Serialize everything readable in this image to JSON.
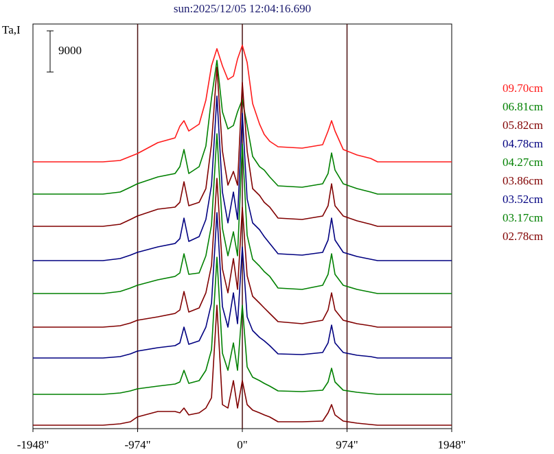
{
  "chart_data": {
    "type": "line",
    "title": "sun:2025/12/05 12:04:16.690",
    "y_label": "Ta,I",
    "scale_bar": 9000,
    "xlim": [
      -1948,
      1948
    ],
    "xticks": [
      {
        "value": -1948,
        "label": "-1948\""
      },
      {
        "value": -974,
        "label": "-974\""
      },
      {
        "value": 0,
        "label": "0\""
      },
      {
        "value": 974,
        "label": "974\""
      },
      {
        "value": 1948,
        "label": "1948\""
      }
    ],
    "vlines": [
      -974,
      0,
      974
    ],
    "ylim": [
      0,
      88500
    ],
    "x": [
      -1948,
      -1297,
      -1137,
      -1041,
      -977,
      -786,
      -626,
      -581,
      -543,
      -498,
      -402,
      -339,
      -287,
      -236,
      -185,
      -134,
      -83,
      -45,
      0,
      45,
      96,
      160,
      204,
      255,
      332,
      556,
      747,
      798,
      830,
      862,
      939,
      1067,
      1194,
      1258,
      1948
    ],
    "series": [
      {
        "name": "09.70cm",
        "color": "#ff1a1a",
        "values": [
          58350,
          58350,
          58650,
          59550,
          60150,
          62550,
          63600,
          66150,
          67350,
          65100,
          66600,
          71850,
          79350,
          83100,
          79350,
          76350,
          77100,
          80850,
          83850,
          80100,
          71100,
          66600,
          64350,
          62850,
          61650,
          61350,
          62100,
          65100,
          67350,
          65100,
          61050,
          59850,
          59100,
          58350,
          58350
        ]
      },
      {
        "name": "06.81cm",
        "color": "#008000",
        "values": [
          51300,
          51300,
          51750,
          52800,
          53550,
          55050,
          55800,
          57300,
          61050,
          55800,
          57300,
          61800,
          72300,
          80550,
          69300,
          65550,
          66300,
          69300,
          72000,
          66300,
          59550,
          57300,
          56550,
          55050,
          53100,
          52800,
          53550,
          55800,
          60300,
          56550,
          53550,
          52500,
          51750,
          51300,
          51300
        ]
      },
      {
        "name": "05.82cm",
        "color": "#800000",
        "values": [
          44250,
          44250,
          44700,
          45750,
          46500,
          48000,
          48450,
          49500,
          54000,
          48750,
          49500,
          52500,
          62250,
          79050,
          60750,
          53250,
          56250,
          53250,
          75750,
          60750,
          52500,
          51000,
          49500,
          48450,
          46050,
          45750,
          46500,
          48750,
          53550,
          48750,
          46500,
          45450,
          44700,
          44250,
          44250
        ]
      },
      {
        "name": "04.78cm",
        "color": "#000080",
        "values": [
          36750,
          36750,
          37200,
          37950,
          38550,
          39750,
          40500,
          41550,
          46050,
          40950,
          42000,
          45750,
          53250,
          72750,
          51750,
          45000,
          51750,
          45750,
          69000,
          50250,
          45000,
          43500,
          42000,
          40500,
          38250,
          37950,
          38550,
          41250,
          46050,
          41250,
          38550,
          37650,
          37050,
          36750,
          36750
        ]
      },
      {
        "name": "04.27cm",
        "color": "#008000",
        "values": [
          29550,
          29550,
          30000,
          30750,
          31350,
          32550,
          33300,
          34050,
          38250,
          33750,
          34050,
          37800,
          44550,
          64500,
          43800,
          37800,
          43050,
          37800,
          62250,
          42300,
          37050,
          35550,
          34350,
          33300,
          30750,
          30450,
          31350,
          33750,
          38250,
          33750,
          31350,
          30450,
          29850,
          29550,
          29550
        ]
      },
      {
        "name": "03.86cm",
        "color": "#800000",
        "values": [
          22200,
          22200,
          22500,
          23100,
          23700,
          24450,
          25200,
          25950,
          30000,
          25500,
          26400,
          29700,
          35700,
          54750,
          34950,
          29700,
          37200,
          30450,
          48450,
          33450,
          28950,
          27450,
          26400,
          25200,
          23400,
          22950,
          23700,
          25950,
          29700,
          25950,
          23700,
          22950,
          22500,
          22200,
          22200
        ]
      },
      {
        "name": "03.52cm",
        "color": "#000080",
        "values": [
          15450,
          15450,
          15750,
          16350,
          16950,
          17700,
          18150,
          18750,
          22200,
          18450,
          19200,
          22200,
          27450,
          47250,
          26700,
          22200,
          29700,
          22950,
          39750,
          24450,
          21450,
          19950,
          19200,
          18150,
          16350,
          16200,
          16650,
          18750,
          22650,
          18750,
          16650,
          16050,
          15750,
          15450,
          15450
        ]
      },
      {
        "name": "03.17cm",
        "color": "#008000",
        "values": [
          7500,
          7500,
          7800,
          8250,
          8700,
          9300,
          9750,
          10200,
          12750,
          9900,
          10500,
          12750,
          17250,
          37500,
          16500,
          12750,
          18750,
          12750,
          27000,
          13500,
          11250,
          10500,
          9900,
          9300,
          8250,
          8100,
          8400,
          10200,
          13200,
          10200,
          8400,
          7950,
          7650,
          7500,
          7500
        ]
      },
      {
        "name": "02.78cm",
        "color": "#800000",
        "values": [
          750,
          750,
          1050,
          1500,
          2550,
          3750,
          3750,
          3450,
          4500,
          3000,
          3450,
          4500,
          6750,
          27000,
          5250,
          4500,
          10500,
          4500,
          10500,
          5250,
          4050,
          3450,
          3000,
          2550,
          1500,
          1500,
          1650,
          3450,
          5250,
          3000,
          1650,
          1200,
          900,
          750,
          750
        ]
      }
    ]
  }
}
